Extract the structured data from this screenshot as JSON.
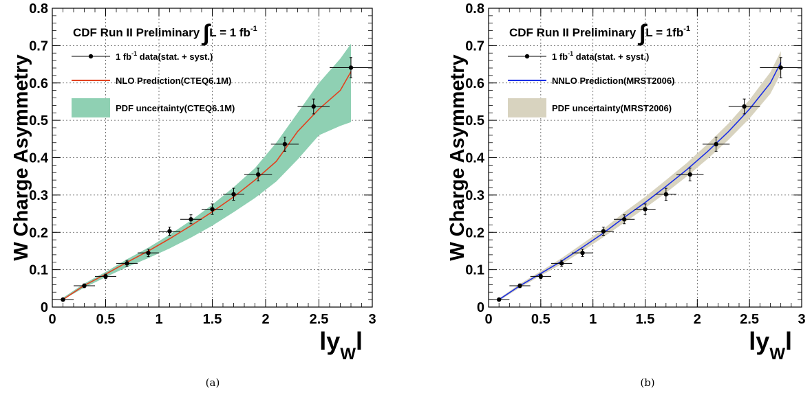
{
  "chart_data": [
    {
      "type": "line",
      "panel_caption": "(a)",
      "header": {
        "prefix": "CDF Run II Preliminary",
        "integral": "∫",
        "lumi_lhs": "L = 1 fb",
        "lumi_sup": "-1"
      },
      "xlabel": {
        "main": "ly",
        "sub": "W",
        "tail": "l"
      },
      "ylabel": "W Charge Asymmetry",
      "xlim": [
        0,
        3
      ],
      "ylim": [
        0,
        0.8
      ],
      "x_ticks": [
        "0",
        "0.5",
        "1",
        "1.5",
        "2",
        "2.5",
        "3"
      ],
      "y_ticks": [
        "0",
        "0.1",
        "0.2",
        "0.3",
        "0.4",
        "0.5",
        "0.6",
        "0.7",
        "0.8"
      ],
      "grid": true,
      "legend_position": "top-left",
      "colors": {
        "band": "#8fd0b3",
        "line": "#e2421f",
        "points": "#000000"
      },
      "legend": [
        {
          "kind": "points",
          "pre": "1 fb",
          "sup": "-1",
          "post": " data(stat. + syst.)"
        },
        {
          "kind": "line",
          "pre": "NLO Prediction(CTEQ6.1M)",
          "sup": "",
          "post": ""
        },
        {
          "kind": "band",
          "pre": "PDF uncertainty(CTEQ6.1M)",
          "sup": "",
          "post": ""
        }
      ],
      "series": [
        {
          "kind": "points",
          "x": [
            0.1,
            0.3,
            0.5,
            0.7,
            0.9,
            1.1,
            1.3,
            1.5,
            1.7,
            1.93,
            2.18,
            2.45,
            2.8
          ],
          "y": [
            0.02,
            0.057,
            0.082,
            0.117,
            0.145,
            0.203,
            0.235,
            0.262,
            0.302,
            0.355,
            0.436,
            0.537,
            0.641
          ],
          "xerr": [
            0.1,
            0.1,
            0.1,
            0.1,
            0.1,
            0.1,
            0.1,
            0.1,
            0.1,
            0.13,
            0.13,
            0.15,
            0.2
          ],
          "yerr": [
            0.004,
            0.005,
            0.006,
            0.008,
            0.01,
            0.011,
            0.012,
            0.014,
            0.016,
            0.017,
            0.019,
            0.02,
            0.027
          ]
        },
        {
          "kind": "line",
          "x": [
            0.1,
            0.3,
            0.5,
            0.7,
            0.9,
            1.1,
            1.3,
            1.5,
            1.7,
            1.9,
            2.1,
            2.2,
            2.3,
            2.5,
            2.7,
            2.8
          ],
          "y": [
            0.02,
            0.058,
            0.088,
            0.12,
            0.15,
            0.183,
            0.218,
            0.255,
            0.295,
            0.34,
            0.39,
            0.43,
            0.47,
            0.53,
            0.58,
            0.63
          ]
        },
        {
          "kind": "band",
          "x": [
            0.1,
            0.3,
            0.5,
            0.7,
            0.9,
            1.1,
            1.3,
            1.5,
            1.7,
            1.9,
            2.1,
            2.3,
            2.5,
            2.7,
            2.8
          ],
          "low": [
            0.02,
            0.052,
            0.08,
            0.107,
            0.131,
            0.157,
            0.186,
            0.218,
            0.254,
            0.292,
            0.336,
            0.395,
            0.46,
            0.485,
            0.495
          ],
          "high": [
            0.025,
            0.063,
            0.094,
            0.128,
            0.159,
            0.194,
            0.232,
            0.274,
            0.321,
            0.372,
            0.44,
            0.52,
            0.6,
            0.665,
            0.705
          ]
        }
      ]
    },
    {
      "type": "line",
      "panel_caption": "(b)",
      "header": {
        "prefix": "CDF Run II Preliminary",
        "integral": "∫",
        "lumi_lhs": "L = 1fb",
        "lumi_sup": "-1"
      },
      "xlabel": {
        "main": "ly",
        "sub": "W",
        "tail": "l"
      },
      "ylabel": "W Charge Asymmetry",
      "xlim": [
        0,
        3
      ],
      "ylim": [
        0,
        0.8
      ],
      "x_ticks": [
        "0",
        "0.5",
        "1",
        "1.5",
        "2",
        "2.5",
        "3"
      ],
      "y_ticks": [
        "0",
        "0.1",
        "0.2",
        "0.3",
        "0.4",
        "0.5",
        "0.6",
        "0.7",
        "0.8"
      ],
      "grid": true,
      "legend_position": "top-left",
      "colors": {
        "band": "#d8d3bf",
        "line": "#1a2ee6",
        "points": "#000000"
      },
      "legend": [
        {
          "kind": "points",
          "pre": "1 fb",
          "sup": "-1",
          "post": " data(stat. + syst.)"
        },
        {
          "kind": "line",
          "pre": "NNLO Prediction(MRST2006)",
          "sup": "",
          "post": ""
        },
        {
          "kind": "band",
          "pre": "PDF uncertainty(MRST2006)",
          "sup": "",
          "post": ""
        }
      ],
      "series": [
        {
          "kind": "points",
          "x": [
            0.1,
            0.3,
            0.5,
            0.7,
            0.9,
            1.1,
            1.3,
            1.5,
            1.7,
            1.93,
            2.18,
            2.45,
            2.8
          ],
          "y": [
            0.02,
            0.057,
            0.082,
            0.117,
            0.145,
            0.203,
            0.235,
            0.262,
            0.302,
            0.355,
            0.436,
            0.537,
            0.641
          ],
          "xerr": [
            0.1,
            0.1,
            0.1,
            0.1,
            0.1,
            0.1,
            0.1,
            0.1,
            0.1,
            0.13,
            0.13,
            0.15,
            0.2
          ],
          "yerr": [
            0.004,
            0.005,
            0.006,
            0.008,
            0.01,
            0.011,
            0.012,
            0.014,
            0.016,
            0.017,
            0.019,
            0.02,
            0.027
          ]
        },
        {
          "kind": "line",
          "x": [
            0.1,
            0.3,
            0.5,
            0.7,
            0.9,
            1.1,
            1.3,
            1.5,
            1.7,
            1.9,
            2.1,
            2.3,
            2.5,
            2.7,
            2.8
          ],
          "y": [
            0.02,
            0.057,
            0.09,
            0.123,
            0.16,
            0.198,
            0.24,
            0.28,
            0.323,
            0.368,
            0.417,
            0.47,
            0.53,
            0.6,
            0.655
          ]
        },
        {
          "kind": "band",
          "x": [
            0.1,
            0.3,
            0.5,
            0.7,
            0.9,
            1.1,
            1.3,
            1.5,
            1.7,
            1.9,
            2.1,
            2.3,
            2.5,
            2.7,
            2.8
          ],
          "low": [
            0.017,
            0.052,
            0.084,
            0.115,
            0.15,
            0.187,
            0.226,
            0.265,
            0.306,
            0.35,
            0.397,
            0.448,
            0.505,
            0.571,
            0.625
          ],
          "high": [
            0.023,
            0.062,
            0.096,
            0.131,
            0.17,
            0.209,
            0.254,
            0.295,
            0.34,
            0.386,
            0.437,
            0.492,
            0.555,
            0.629,
            0.685
          ]
        }
      ]
    }
  ]
}
